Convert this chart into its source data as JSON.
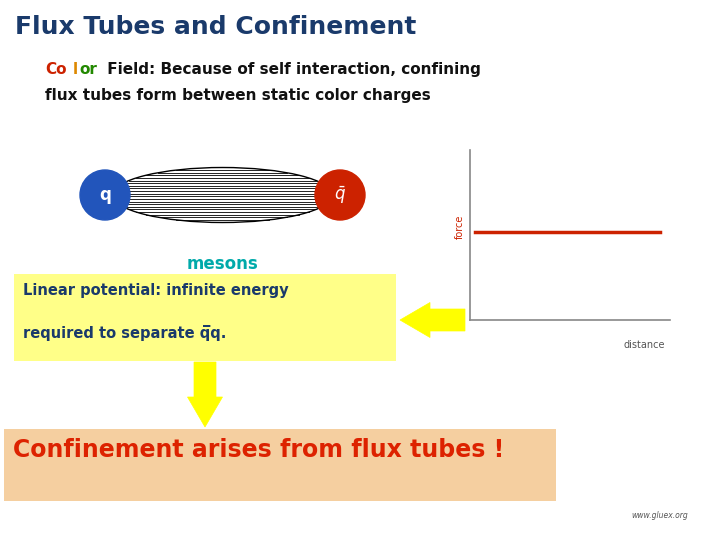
{
  "title": "Flux Tubes and Confinement",
  "title_color": "#1a3a6b",
  "title_fontsize": 18,
  "subtitle_line1_parts": [
    [
      "Co",
      "#cc2200"
    ],
    [
      "l",
      "#dd8800"
    ],
    [
      "or",
      "#228800"
    ],
    [
      " Field: Because of self interaction, confining",
      "#111111"
    ]
  ],
  "subtitle_line2": "flux tubes form between static color charges",
  "subtitle_color": "#111111",
  "subtitle_fontsize": 11,
  "q_label": "q",
  "mesons_label": "mesons",
  "mesons_color": "#00aaaa",
  "linear_text_line1": "Linear potential: infinite energy",
  "linear_text_line2": "required to separate q̅q.",
  "linear_box_color": "#ffff88",
  "linear_text_color": "#1a3a6b",
  "confinement_text": "Confinement arises from flux tubes !",
  "confinement_color": "#dd2200",
  "confinement_bg": "#f5cfa0",
  "force_label": "force",
  "distance_label": "distance",
  "bg_color": "#ffffff"
}
